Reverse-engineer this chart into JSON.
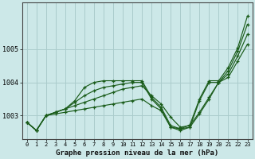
{
  "title": "Graphe pression niveau de la mer (hPa)",
  "background_color": "#cce8e8",
  "grid_color": "#aacccc",
  "line_color": "#1a5c1a",
  "x_labels": [
    "0",
    "1",
    "2",
    "3",
    "4",
    "5",
    "6",
    "7",
    "8",
    "9",
    "10",
    "11",
    "12",
    "13",
    "14",
    "15",
    "16",
    "17",
    "18",
    "19",
    "20",
    "21",
    "22",
    "23"
  ],
  "yticks": [
    1003,
    1004,
    1005
  ],
  "ylim": [
    1002.3,
    1006.4
  ],
  "xlim": [
    -0.5,
    23.5
  ],
  "series": [
    [
      1002.8,
      1002.55,
      1003.0,
      1003.05,
      1003.1,
      1003.15,
      1003.2,
      1003.25,
      1003.3,
      1003.35,
      1003.4,
      1003.45,
      1003.5,
      1003.3,
      1003.15,
      1002.65,
      1002.6,
      1002.65,
      1003.05,
      1003.5,
      1004.0,
      1004.15,
      1004.65,
      1005.15
    ],
    [
      1002.8,
      1002.55,
      1003.0,
      1003.1,
      1003.2,
      1003.3,
      1003.4,
      1003.5,
      1003.6,
      1003.7,
      1003.8,
      1003.85,
      1003.9,
      1003.6,
      1003.35,
      1002.95,
      1002.65,
      1002.7,
      1003.1,
      1003.55,
      1004.0,
      1004.25,
      1004.8,
      1005.45
    ],
    [
      1002.8,
      1002.55,
      1003.0,
      1003.1,
      1003.2,
      1003.4,
      1003.6,
      1003.75,
      1003.85,
      1003.9,
      1003.95,
      1004.0,
      1004.0,
      1003.5,
      1003.2,
      1002.65,
      1002.55,
      1002.65,
      1003.45,
      1004.0,
      1004.0,
      1004.35,
      1004.95,
      1005.75
    ],
    [
      1002.8,
      1002.55,
      1003.0,
      1003.1,
      1003.2,
      1003.45,
      1003.85,
      1004.0,
      1004.05,
      1004.05,
      1004.05,
      1004.05,
      1004.05,
      1003.55,
      1003.25,
      1002.7,
      1002.6,
      1002.72,
      1003.5,
      1004.05,
      1004.05,
      1004.45,
      1005.05,
      1006.0
    ]
  ]
}
